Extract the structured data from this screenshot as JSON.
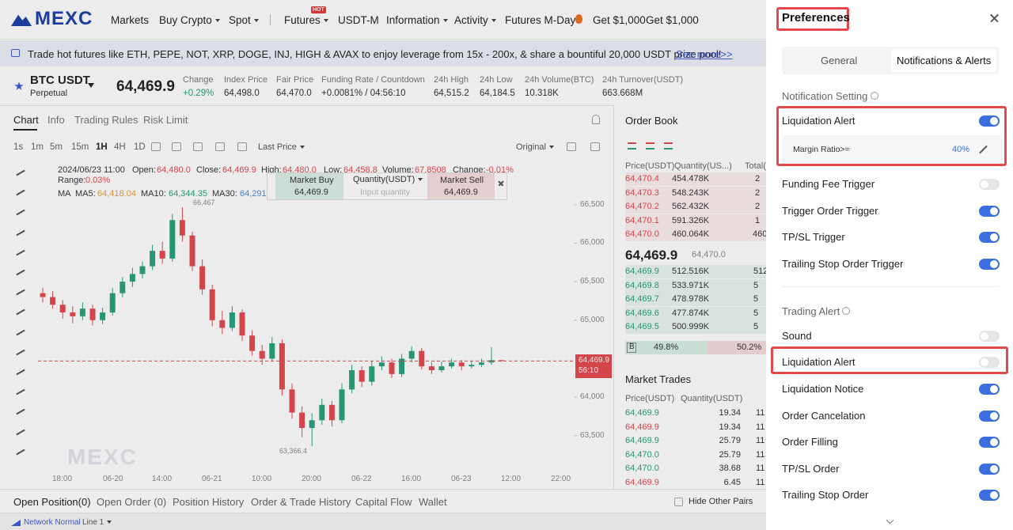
{
  "nav": {
    "logo": "MEXC",
    "hot": "HOT",
    "items": [
      {
        "label": "Markets"
      },
      {
        "label": "Buy Crypto",
        "dropdown": true
      },
      {
        "label": "Spot",
        "dropdown": true
      },
      {
        "label": "Futures",
        "dropdown": true
      },
      {
        "label": "USDT-M"
      },
      {
        "label": "Information",
        "dropdown": true
      },
      {
        "label": "Activity",
        "dropdown": true
      },
      {
        "label": "Futures M-Day"
      },
      {
        "label": "Get $1,000"
      },
      {
        "label": "Get $1,000"
      }
    ]
  },
  "banner": {
    "text": "Trade hot futures like ETH, PEPE, NOT, XRP, DOGE, INJ, HIGH & AVAX to enjoy leverage from 15x - 200x, & share a bountiful 20,000 USDT prize pool!",
    "link": "See more>>"
  },
  "ticker": {
    "symbol": "BTC USDT",
    "sub": "Perpetual",
    "price": "64,469.9",
    "stats": [
      {
        "label": "Change",
        "value": "+0.29%"
      },
      {
        "label": "Index Price",
        "value": "64,498.0"
      },
      {
        "label": "Fair Price",
        "value": "64,470.0"
      },
      {
        "label": "Funding Rate / Countdown",
        "value": "+0.0081% / 04:56:10"
      },
      {
        "label": "24h High",
        "value": "64,515.2"
      },
      {
        "label": "24h Low",
        "value": "64,184.5"
      },
      {
        "label": "24h Volume(BTC)",
        "value": "10.318K"
      },
      {
        "label": "24h Turnover(USDT)",
        "value": "663.668M"
      }
    ]
  },
  "chart_tabs": [
    "Chart",
    "Info",
    "Trading Rules",
    "Risk Limit"
  ],
  "intervals": [
    "1s",
    "1m",
    "5m",
    "15m",
    "1H",
    "4H",
    "1D"
  ],
  "price_type": "Last Price",
  "view": "Original",
  "legend": {
    "date": "2024/06/23 11:00",
    "open_label": "Open:",
    "open": "64,480.0",
    "close_label": "Close:",
    "close": "64,469.9",
    "high_label": "High:",
    "high": "64,480.0",
    "low_label": "Low:",
    "low": "64,458.8",
    "volume_label": "Volume:",
    "volume": "67.8508",
    "change_label": "Change:",
    "change": "-0.01%",
    "range_label": "Range:",
    "range": "0.03%",
    "ma": "MA",
    "ma5_label": "MA5:",
    "ma5": "64,418.04",
    "ma10_label": "MA10:",
    "ma10": "64,344.35",
    "ma30_label": "MA30:",
    "ma30": "64,291"
  },
  "quick_trade": {
    "buy": "Market Buy",
    "buy_price": "64,469.9",
    "qty": "Quantity(USDT)",
    "placeholder": "Input quantity",
    "sell": "Market Sell",
    "sell_price": "64,469.9"
  },
  "chart": {
    "type": "candlestick",
    "up_color": "#26a17b",
    "down_color": "#e5484d",
    "ylim": [
      62850,
      66600
    ],
    "yticks": [
      {
        "value": 66500,
        "label": "66,500"
      },
      {
        "value": 66000,
        "label": "66,000"
      },
      {
        "value": 65500,
        "label": "65,500"
      },
      {
        "value": 65000,
        "label": "65,000"
      },
      {
        "value": 64000,
        "label": "64,000"
      },
      {
        "value": 63500,
        "label": "63,500"
      }
    ],
    "time_labels": [
      "18:00",
      "06-20",
      "14:00",
      "06-21",
      "10:00",
      "20:00",
      "06-22",
      "16:00",
      "06-23",
      "12:00",
      "22:00"
    ],
    "high_marker": "66,467",
    "low_marker": "63,366.4",
    "last_price": {
      "value": 64469.9,
      "label": "64,469.9"
    },
    "countdown": "56:10",
    "watermark": "MEXC",
    "candles": [
      [
        65350,
        65420,
        65230,
        65300
      ],
      [
        65300,
        65380,
        65150,
        65200
      ],
      [
        65200,
        65260,
        65020,
        65100
      ],
      [
        65100,
        65180,
        64960,
        65050
      ],
      [
        65050,
        65230,
        65000,
        65150
      ],
      [
        65150,
        65200,
        64930,
        65000
      ],
      [
        65000,
        65160,
        64950,
        65100
      ],
      [
        65100,
        65420,
        65060,
        65350
      ],
      [
        65350,
        65560,
        65300,
        65500
      ],
      [
        65500,
        65680,
        65430,
        65600
      ],
      [
        65600,
        65760,
        65540,
        65700
      ],
      [
        65700,
        65980,
        65650,
        65900
      ],
      [
        65900,
        66020,
        65730,
        65800
      ],
      [
        65800,
        66380,
        65760,
        66300
      ],
      [
        66300,
        66467,
        66020,
        66100
      ],
      [
        66100,
        66150,
        65640,
        65700
      ],
      [
        65700,
        65790,
        65330,
        65400
      ],
      [
        65400,
        65460,
        64920,
        65000
      ],
      [
        65000,
        65120,
        64820,
        64900
      ],
      [
        64900,
        65180,
        64860,
        65100
      ],
      [
        65100,
        65140,
        64730,
        64800
      ],
      [
        64800,
        64870,
        64540,
        64600
      ],
      [
        64600,
        64680,
        64420,
        64500
      ],
      [
        64500,
        64780,
        64460,
        64700
      ],
      [
        64700,
        64750,
        64020,
        64100
      ],
      [
        64100,
        64180,
        63720,
        63800
      ],
      [
        63800,
        63880,
        63480,
        63600
      ],
      [
        63600,
        63790,
        63366.4,
        63700
      ],
      [
        63700,
        63980,
        63640,
        63900
      ],
      [
        63900,
        63950,
        63620,
        63700
      ],
      [
        63700,
        64180,
        63660,
        64100
      ],
      [
        64100,
        64420,
        64050,
        64350
      ],
      [
        64350,
        64400,
        64130,
        64200
      ],
      [
        64200,
        64470,
        64150,
        64400
      ],
      [
        64400,
        64530,
        64350,
        64450
      ],
      [
        64450,
        64500,
        64250,
        64300
      ],
      [
        64300,
        64560,
        64260,
        64500
      ],
      [
        64500,
        64660,
        64450,
        64600
      ],
      [
        64600,
        64640,
        64360,
        64400
      ],
      [
        64400,
        64450,
        64300,
        64350
      ],
      [
        64350,
        64460,
        64320,
        64400
      ],
      [
        64400,
        64500,
        64370,
        64450
      ],
      [
        64450,
        64480,
        64350,
        64400
      ],
      [
        64400,
        64470,
        64370,
        64420
      ],
      [
        64420,
        64500,
        64390,
        64450
      ],
      [
        64450,
        64650,
        64420,
        64480
      ],
      [
        64480,
        64480,
        64458.8,
        64469.9
      ]
    ]
  },
  "order_book": {
    "title": "Order Book",
    "headers": [
      "Price(USDT)",
      "Quantity(US...)",
      "Total("
    ],
    "asks": [
      [
        "64,470.4",
        "454.478K",
        "2"
      ],
      [
        "64,470.3",
        "548.243K",
        "2"
      ],
      [
        "64,470.2",
        "562.432K",
        "2"
      ],
      [
        "64,470.1",
        "591.326K",
        "1"
      ],
      [
        "64,470.0",
        "460.064K",
        "460"
      ]
    ],
    "mid": "64,469.9",
    "mark": "64,470.0",
    "bids": [
      [
        "64,469.9",
        "512.516K",
        "512"
      ],
      [
        "64,469.8",
        "533.971K",
        "5"
      ],
      [
        "64,469.7",
        "478.978K",
        "5"
      ],
      [
        "64,469.6",
        "477.874K",
        "5"
      ],
      [
        "64,469.5",
        "500.999K",
        "5"
      ]
    ],
    "ratio_b": "B",
    "buy_pct": "49.8%",
    "sell_pct": "50.2%"
  },
  "trades": {
    "title": "Market Trades",
    "headers": [
      "Price(USDT)",
      "Quantity(USDT)"
    ],
    "rows": [
      [
        "64,469.9",
        "19.34",
        "11"
      ],
      [
        "64,469.9",
        "19.34",
        "11"
      ],
      [
        "64,469.9",
        "25.79",
        "11"
      ],
      [
        "64,470.0",
        "25.79",
        "11"
      ],
      [
        "64,470.0",
        "38.68",
        "11"
      ],
      [
        "64,469.9",
        "6.45",
        "11"
      ]
    ]
  },
  "bottom_tabs": [
    "Open Position(0)",
    "Open Order (0)",
    "Position History",
    "Order & Trade History",
    "Capital Flow",
    "Wallet"
  ],
  "hide_pairs": "Hide Other Pairs",
  "status": {
    "network": "Network Normal",
    "line": "Line 1"
  },
  "preferences": {
    "title": "Preferences",
    "tabs": [
      "General",
      "Notifications & Alerts"
    ],
    "active_tab": 1,
    "notification": {
      "heading": "Notification Setting",
      "items": [
        {
          "label": "Liquidation Alert",
          "on": true,
          "highlighted": true
        },
        {
          "label": "Funding Fee Trigger",
          "on": false
        },
        {
          "label": "Trigger Order Trigger",
          "on": true
        },
        {
          "label": "TP/SL Trigger",
          "on": true
        },
        {
          "label": "Trailing Stop Order Trigger",
          "on": true
        }
      ],
      "margin_label": "Margin Ratio>=",
      "margin_value": "40%"
    },
    "trading": {
      "heading": "Trading Alert",
      "items": [
        {
          "label": "Sound",
          "on": false
        },
        {
          "label": "Liquidation Alert",
          "on": false,
          "highlighted": true
        },
        {
          "label": "Liquidation Notice",
          "on": true
        },
        {
          "label": "Order Cancelation",
          "on": true
        },
        {
          "label": "Order Filling",
          "on": true
        },
        {
          "label": "TP/SL Order",
          "on": true
        },
        {
          "label": "Trailing Stop Order",
          "on": true
        }
      ]
    }
  }
}
